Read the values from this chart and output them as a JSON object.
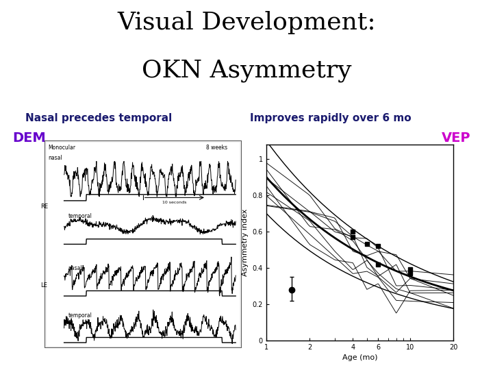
{
  "title_line1": "Visual Development:",
  "title_line2": "OKN Asymmetry",
  "title_fontsize": 26,
  "title_color": "#000000",
  "subtitle_left": "Nasal precedes temporal",
  "subtitle_right": "Improves rapidly over 6 mo",
  "subtitle_fontsize": 11,
  "subtitle_color": "#1a1a6e",
  "label_dem": "DEM",
  "label_vep": "VEP",
  "label_dem_color": "#6600cc",
  "label_vep_color": "#cc00cc",
  "label_fontsize": 14,
  "bg_color": "#ffffff"
}
